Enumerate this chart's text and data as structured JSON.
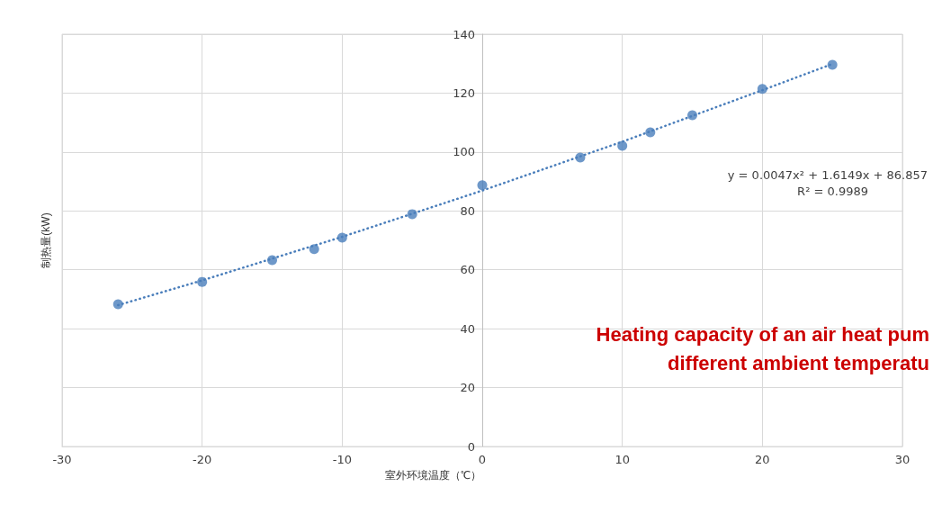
{
  "chart_data": {
    "type": "scatter",
    "xlabel": "室外环境温度（℃）",
    "ylabel": "制热量(kW)",
    "xlim": [
      -30,
      30
    ],
    "xticks": [
      -30,
      -20,
      -10,
      0,
      10,
      20,
      30
    ],
    "ylim": [
      0,
      140
    ],
    "yticks": [
      0,
      20,
      40,
      60,
      80,
      100,
      120,
      140
    ],
    "grid": true,
    "series": [
      {
        "color": "#4a7ebb",
        "marker": "circle",
        "x": [
          -26,
          -20,
          -15,
          -12,
          -10,
          -5,
          0,
          7,
          10,
          12,
          15,
          20,
          25
        ],
        "values": [
          48.3,
          55.9,
          63.3,
          67.0,
          70.9,
          78.9,
          88.7,
          98.1,
          102.1,
          106.7,
          112.5,
          121.4,
          129.6
        ]
      },
      {
        "type": "line",
        "color": "#4a7ebb",
        "marker": "none",
        "line_style": "dotted",
        "x": [
          -26,
          -20,
          -10,
          0,
          10,
          20,
          25
        ],
        "values": [
          48.0,
          56.4,
          71.2,
          86.9,
          103.5,
          121.0,
          129.9
        ]
      }
    ],
    "annotations": [
      "y = 0.0047x² + 1.6149x + 86.857",
      "R² = 0.9989",
      "Heating capacity of an air heat pum",
      "different ambient temperatu"
    ]
  }
}
